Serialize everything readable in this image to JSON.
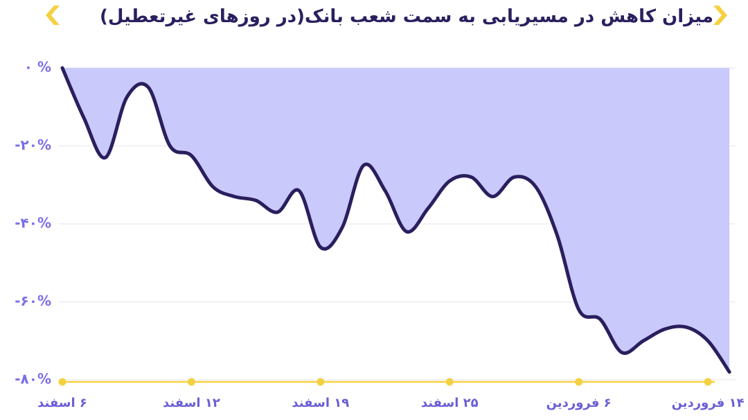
{
  "chart_data": {
    "type": "area",
    "title": "میزان کاهش  در مسیریابی به سمت شعب بانک(در روزهای غیرتعطیل)",
    "categories": [
      "۶ اسفند",
      null,
      null,
      null,
      null,
      null,
      "۱۲ اسفند",
      null,
      null,
      null,
      null,
      null,
      "۱۹ اسفند",
      null,
      null,
      null,
      null,
      null,
      "۲۵ اسفند",
      null,
      null,
      null,
      null,
      null,
      "۶ فروردین",
      null,
      null,
      null,
      null,
      null,
      "۱۴ فروردین",
      null
    ],
    "values": [
      0,
      -12.8,
      -23,
      -7.5,
      -5,
      -20,
      -22.5,
      -30.5,
      -33,
      -34,
      -37,
      -31.5,
      -46,
      -41,
      -25,
      -31.5,
      -42,
      -36,
      -29,
      -28,
      -33,
      -28,
      -30.5,
      -43,
      -62,
      -64.5,
      -73,
      -70,
      -67,
      -66.5,
      -70,
      -78
    ],
    "color": "#2a1f5e",
    "fill_color": "#cac9fb",
    "ylim": [
      -80,
      0
    ],
    "yticks": [
      {
        "value": 0,
        "label": "۰ %"
      },
      {
        "value": -20,
        "label": "-۲۰%"
      },
      {
        "value": -40,
        "label": "-۴۰%"
      },
      {
        "value": -60,
        "label": "-۶۰%"
      },
      {
        "value": -80,
        "label": "-۸۰%"
      }
    ],
    "grid": true
  }
}
